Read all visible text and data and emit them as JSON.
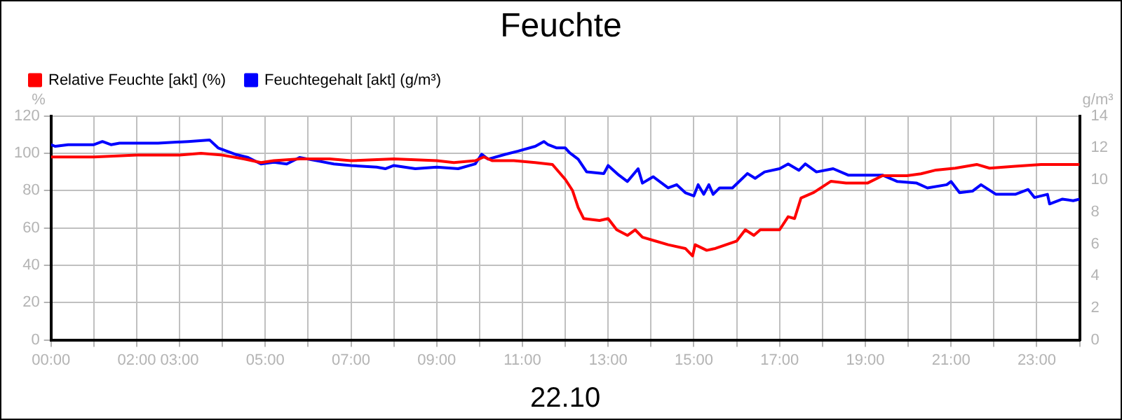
{
  "chart_data": {
    "type": "line",
    "title": "Feuchte",
    "xlabel": "22.10",
    "ylabel": "%",
    "y2label": "g/m³",
    "xlim": [
      0,
      24
    ],
    "ylim": [
      0,
      120
    ],
    "yticks": [
      0,
      20,
      40,
      60,
      80,
      100,
      120
    ],
    "y2lim": [
      0,
      14
    ],
    "y2ticks": [
      0,
      2,
      4,
      6,
      8,
      10,
      12,
      14
    ],
    "xticks": [
      {
        "value": 0,
        "label": "00:00"
      },
      {
        "value": 1,
        "label": null
      },
      {
        "value": 2,
        "label": "02:00"
      },
      {
        "value": 3,
        "label": "03:00"
      },
      {
        "value": 4,
        "label": null
      },
      {
        "value": 5,
        "label": "05:00"
      },
      {
        "value": 6,
        "label": null
      },
      {
        "value": 7,
        "label": "07:00"
      },
      {
        "value": 8,
        "label": null
      },
      {
        "value": 9,
        "label": "09:00"
      },
      {
        "value": 10,
        "label": null
      },
      {
        "value": 11,
        "label": "11:00"
      },
      {
        "value": 12,
        "label": null
      },
      {
        "value": 13,
        "label": "13:00"
      },
      {
        "value": 14,
        "label": null
      },
      {
        "value": 15,
        "label": "15:00"
      },
      {
        "value": 16,
        "label": null
      },
      {
        "value": 17,
        "label": "17:00"
      },
      {
        "value": 18,
        "label": null
      },
      {
        "value": 19,
        "label": "19:00"
      },
      {
        "value": 20,
        "label": null
      },
      {
        "value": 21,
        "label": "21:00"
      },
      {
        "value": 22,
        "label": null
      },
      {
        "value": 23,
        "label": "23:00"
      },
      {
        "value": 24,
        "label": null
      }
    ],
    "grid": true,
    "legend": "top left",
    "marker": "none",
    "line_style": "solid",
    "series": [
      {
        "name": "Relative Feuchte [akt] (%)",
        "color": "#ff0000",
        "x": [
          0,
          0.5,
          1,
          2,
          3,
          3.5,
          4,
          4.5,
          4.9,
          5.2,
          5.8,
          6.5,
          7,
          8,
          9,
          9.4,
          9.9,
          10.1,
          10.3,
          10.8,
          11.3,
          11.7,
          12,
          12.17,
          12.3,
          12.43,
          12.8,
          13,
          13.2,
          13.45,
          13.63,
          13.8,
          14.1,
          14.4,
          14.8,
          14.97,
          15.03,
          15.3,
          15.5,
          15.75,
          16,
          16.2,
          16.4,
          16.55,
          16.9,
          17,
          17.2,
          17.35,
          17.5,
          17.8,
          18.2,
          18.55,
          19.05,
          19.4,
          19.97,
          20.3,
          20.65,
          21.1,
          21.6,
          21.9,
          22.5,
          23.1,
          23.5,
          24
        ],
        "values": [
          98,
          98,
          98,
          99,
          99,
          100,
          99,
          97,
          95,
          96,
          97,
          97,
          96,
          97,
          96,
          95,
          96,
          98,
          96,
          96,
          95,
          94,
          86,
          80,
          71,
          65,
          64,
          65,
          59,
          56,
          59,
          55,
          53,
          51,
          49,
          45,
          51,
          48,
          49,
          51,
          53,
          59,
          56,
          59,
          59,
          59,
          66,
          65,
          76,
          79,
          85,
          84,
          84,
          88,
          88,
          89,
          91,
          92,
          94,
          92,
          93,
          94,
          94,
          94
        ]
      },
      {
        "name": "Feuchtegehalt [akt] (g/m³)",
        "color": "#0000ff",
        "axis": "y2",
        "x": [
          0,
          0.1,
          0.4,
          1,
          1.2,
          1.4,
          1.6,
          2.5,
          3.2,
          3.7,
          3.9,
          4.3,
          4.6,
          4.9,
          5.2,
          5.5,
          5.8,
          6.2,
          6.6,
          7,
          7.6,
          7.8,
          8,
          8.5,
          9,
          9.5,
          9.9,
          10.05,
          10.2,
          10.6,
          10.9,
          11.3,
          11.5,
          11.6,
          11.8,
          12,
          12.1,
          12.3,
          12.5,
          12.9,
          13,
          13.25,
          13.45,
          13.7,
          13.8,
          14.05,
          14.4,
          14.6,
          14.8,
          15,
          15.1,
          15.23,
          15.35,
          15.45,
          15.6,
          15.9,
          16.25,
          16.43,
          16.65,
          17,
          17.2,
          17.45,
          17.6,
          17.86,
          18.25,
          18.6,
          19.05,
          19.4,
          19.75,
          20.2,
          20.45,
          20.9,
          21,
          21.2,
          21.5,
          21.7,
          22.05,
          22.5,
          22.8,
          22.95,
          23.25,
          23.3,
          23.6,
          23.85,
          24
        ],
        "values": [
          12.2,
          12.1,
          12.2,
          12.2,
          12.4,
          12.2,
          12.3,
          12.3,
          12.4,
          12.5,
          12.0,
          11.6,
          11.4,
          11.0,
          11.1,
          11.0,
          11.4,
          11.2,
          11.0,
          10.9,
          10.8,
          10.7,
          10.9,
          10.7,
          10.8,
          10.7,
          11.0,
          11.6,
          11.3,
          11.6,
          11.8,
          12.1,
          12.4,
          12.2,
          12.0,
          12.0,
          11.7,
          11.3,
          10.5,
          10.4,
          10.9,
          10.3,
          9.9,
          10.7,
          9.8,
          10.2,
          9.5,
          9.7,
          9.2,
          9.0,
          9.7,
          9.1,
          9.7,
          9.1,
          9.5,
          9.5,
          10.4,
          10.1,
          10.5,
          10.7,
          11.0,
          10.6,
          11.0,
          10.5,
          10.7,
          10.3,
          10.3,
          10.3,
          9.9,
          9.8,
          9.5,
          9.7,
          9.9,
          9.2,
          9.3,
          9.7,
          9.1,
          9.1,
          9.4,
          8.9,
          9.1,
          8.5,
          8.8,
          8.7,
          8.8
        ]
      }
    ]
  }
}
